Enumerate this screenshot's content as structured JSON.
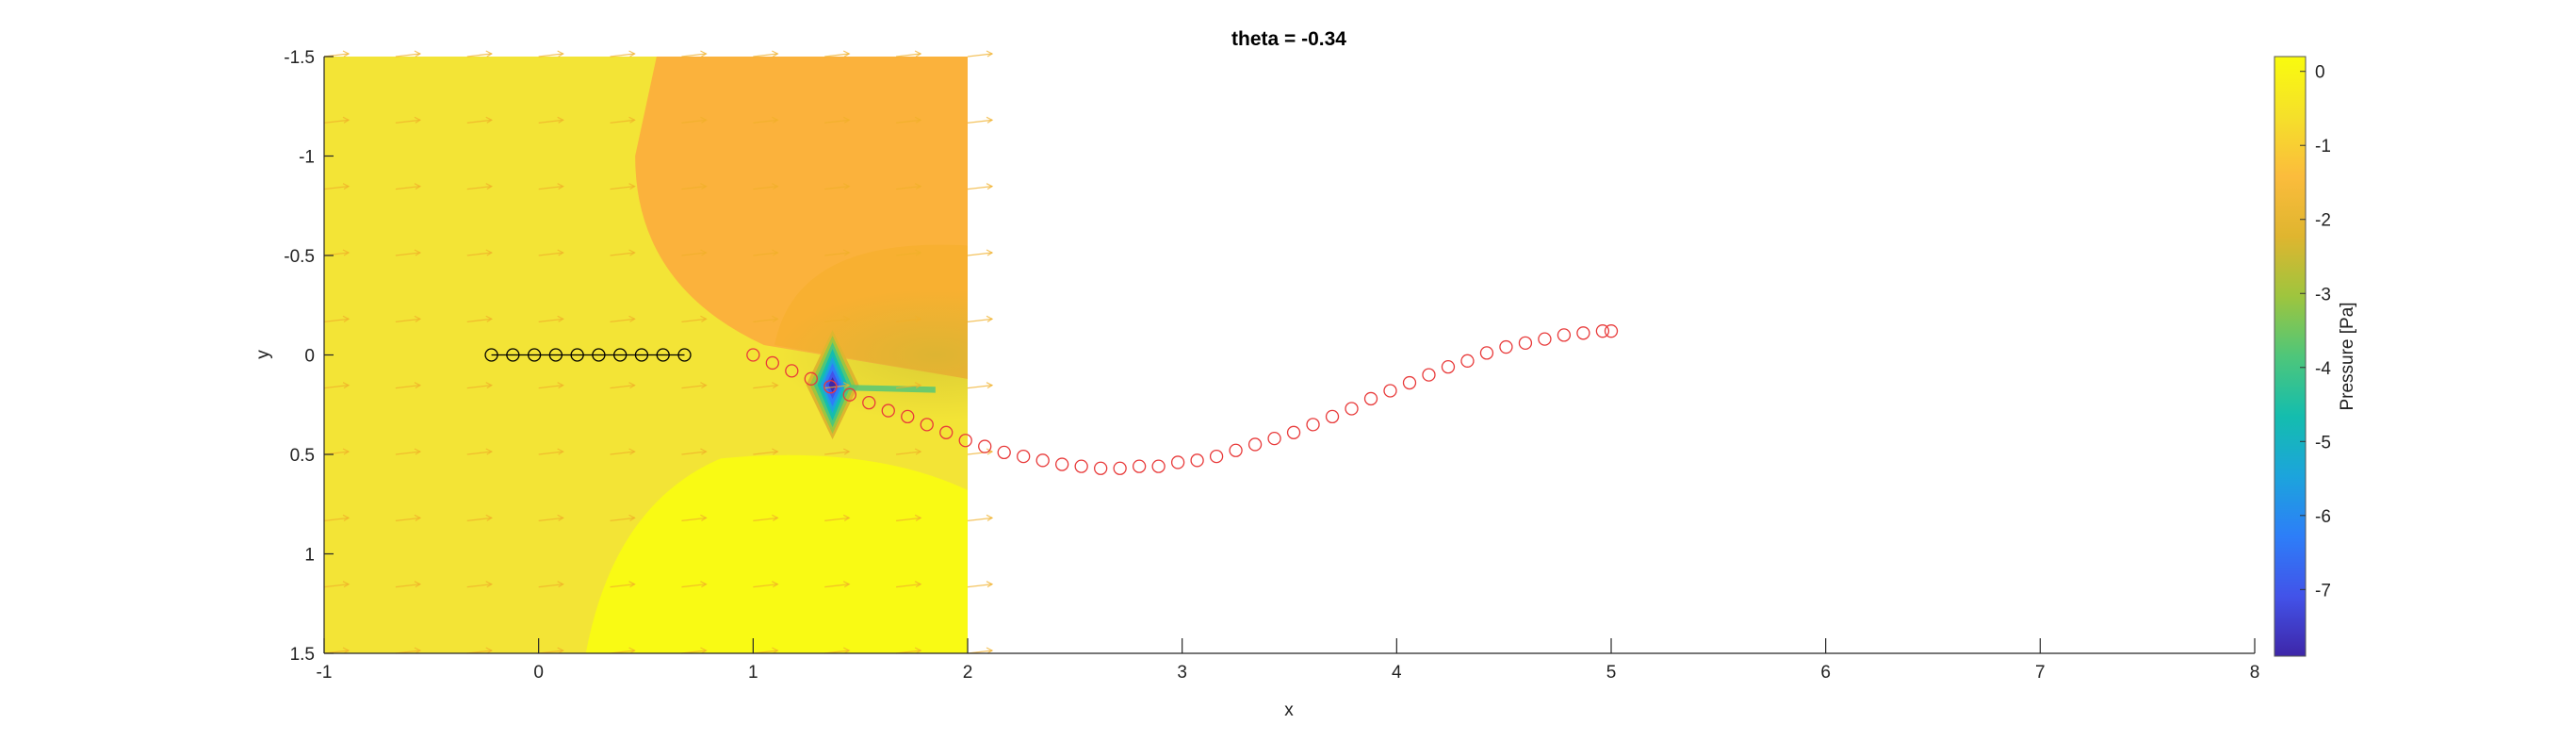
{
  "chart_data": {
    "type": "contour",
    "title": "theta = -0.34",
    "xlabel": "x",
    "ylabel": "y",
    "xlim": [
      -1,
      8
    ],
    "ylim": [
      -1.5,
      1.5
    ],
    "y_axis_reversed": true,
    "x_ticks": [
      -1,
      0,
      1,
      2,
      3,
      4,
      5,
      6,
      7,
      8
    ],
    "x_tick_labels": [
      "-1",
      "0",
      "1",
      "2",
      "3",
      "4",
      "5",
      "6",
      "7",
      "8"
    ],
    "y_ticks": [
      -1.5,
      -1,
      -0.5,
      0,
      0.5,
      1,
      1.5
    ],
    "y_tick_labels": [
      "-1.5",
      "-1",
      "-0.5",
      "0",
      "0.5",
      "1",
      "1.5"
    ],
    "grid": false,
    "field": {
      "x_range": [
        -1,
        2
      ],
      "y_range": [
        -1.5,
        1.5
      ],
      "min_region_center": [
        1.37,
        0.15
      ],
      "description_colors": {
        "high": "#f9fa14",
        "mid": "#f3e436",
        "low": "#fbb23c"
      }
    },
    "colorbar": {
      "label": "Pressure [Pa]",
      "limits": [
        -7.9,
        0.2
      ],
      "ticks": [
        0,
        -1,
        -2,
        -3,
        -4,
        -5,
        -6,
        -7
      ],
      "tick_labels": [
        "0",
        "-1",
        "-2",
        "-3",
        "-4",
        "-5",
        "-6",
        "-7"
      ],
      "colormap": [
        "#3e26a8",
        "#4253e9",
        "#2d7ef8",
        "#1ca4dc",
        "#14bdae",
        "#4ec67a",
        "#9ec53e",
        "#dfb52f",
        "#fbbc3c",
        "#f5e02a",
        "#f9fb0e"
      ]
    },
    "series": [
      {
        "marker": "circle-open",
        "color": "#000000",
        "x": [
          -0.22,
          -0.12,
          -0.02,
          0.08,
          0.18,
          0.28,
          0.38,
          0.48,
          0.58,
          0.68
        ],
        "y": [
          0,
          0,
          0,
          0,
          0,
          0,
          0,
          0,
          0,
          0
        ]
      },
      {
        "marker": "circle-open",
        "color": "#e83a3a",
        "x": [
          1.0,
          1.09,
          1.18,
          1.27,
          1.36,
          1.45,
          1.54,
          1.63,
          1.72,
          1.81,
          1.9,
          1.99,
          2.08,
          2.17,
          2.26,
          2.35,
          2.44,
          2.53,
          2.62,
          2.71,
          2.8,
          2.89,
          2.98,
          3.07,
          3.16,
          3.25,
          3.34,
          3.43,
          3.52,
          3.61,
          3.7,
          3.79,
          3.88,
          3.97,
          4.06,
          4.15,
          4.24,
          4.33,
          4.42,
          4.51,
          4.6,
          4.69,
          4.78,
          4.87,
          4.96,
          5.0
        ],
        "y": [
          0.0,
          0.04,
          0.08,
          0.12,
          0.16,
          0.2,
          0.24,
          0.28,
          0.31,
          0.35,
          0.39,
          0.43,
          0.46,
          0.49,
          0.51,
          0.53,
          0.55,
          0.56,
          0.57,
          0.57,
          0.56,
          0.56,
          0.54,
          0.53,
          0.51,
          0.48,
          0.45,
          0.42,
          0.39,
          0.35,
          0.31,
          0.27,
          0.22,
          0.18,
          0.14,
          0.1,
          0.06,
          0.03,
          -0.01,
          -0.04,
          -0.06,
          -0.08,
          -0.1,
          -0.11,
          -0.12,
          -0.12
        ]
      }
    ]
  }
}
